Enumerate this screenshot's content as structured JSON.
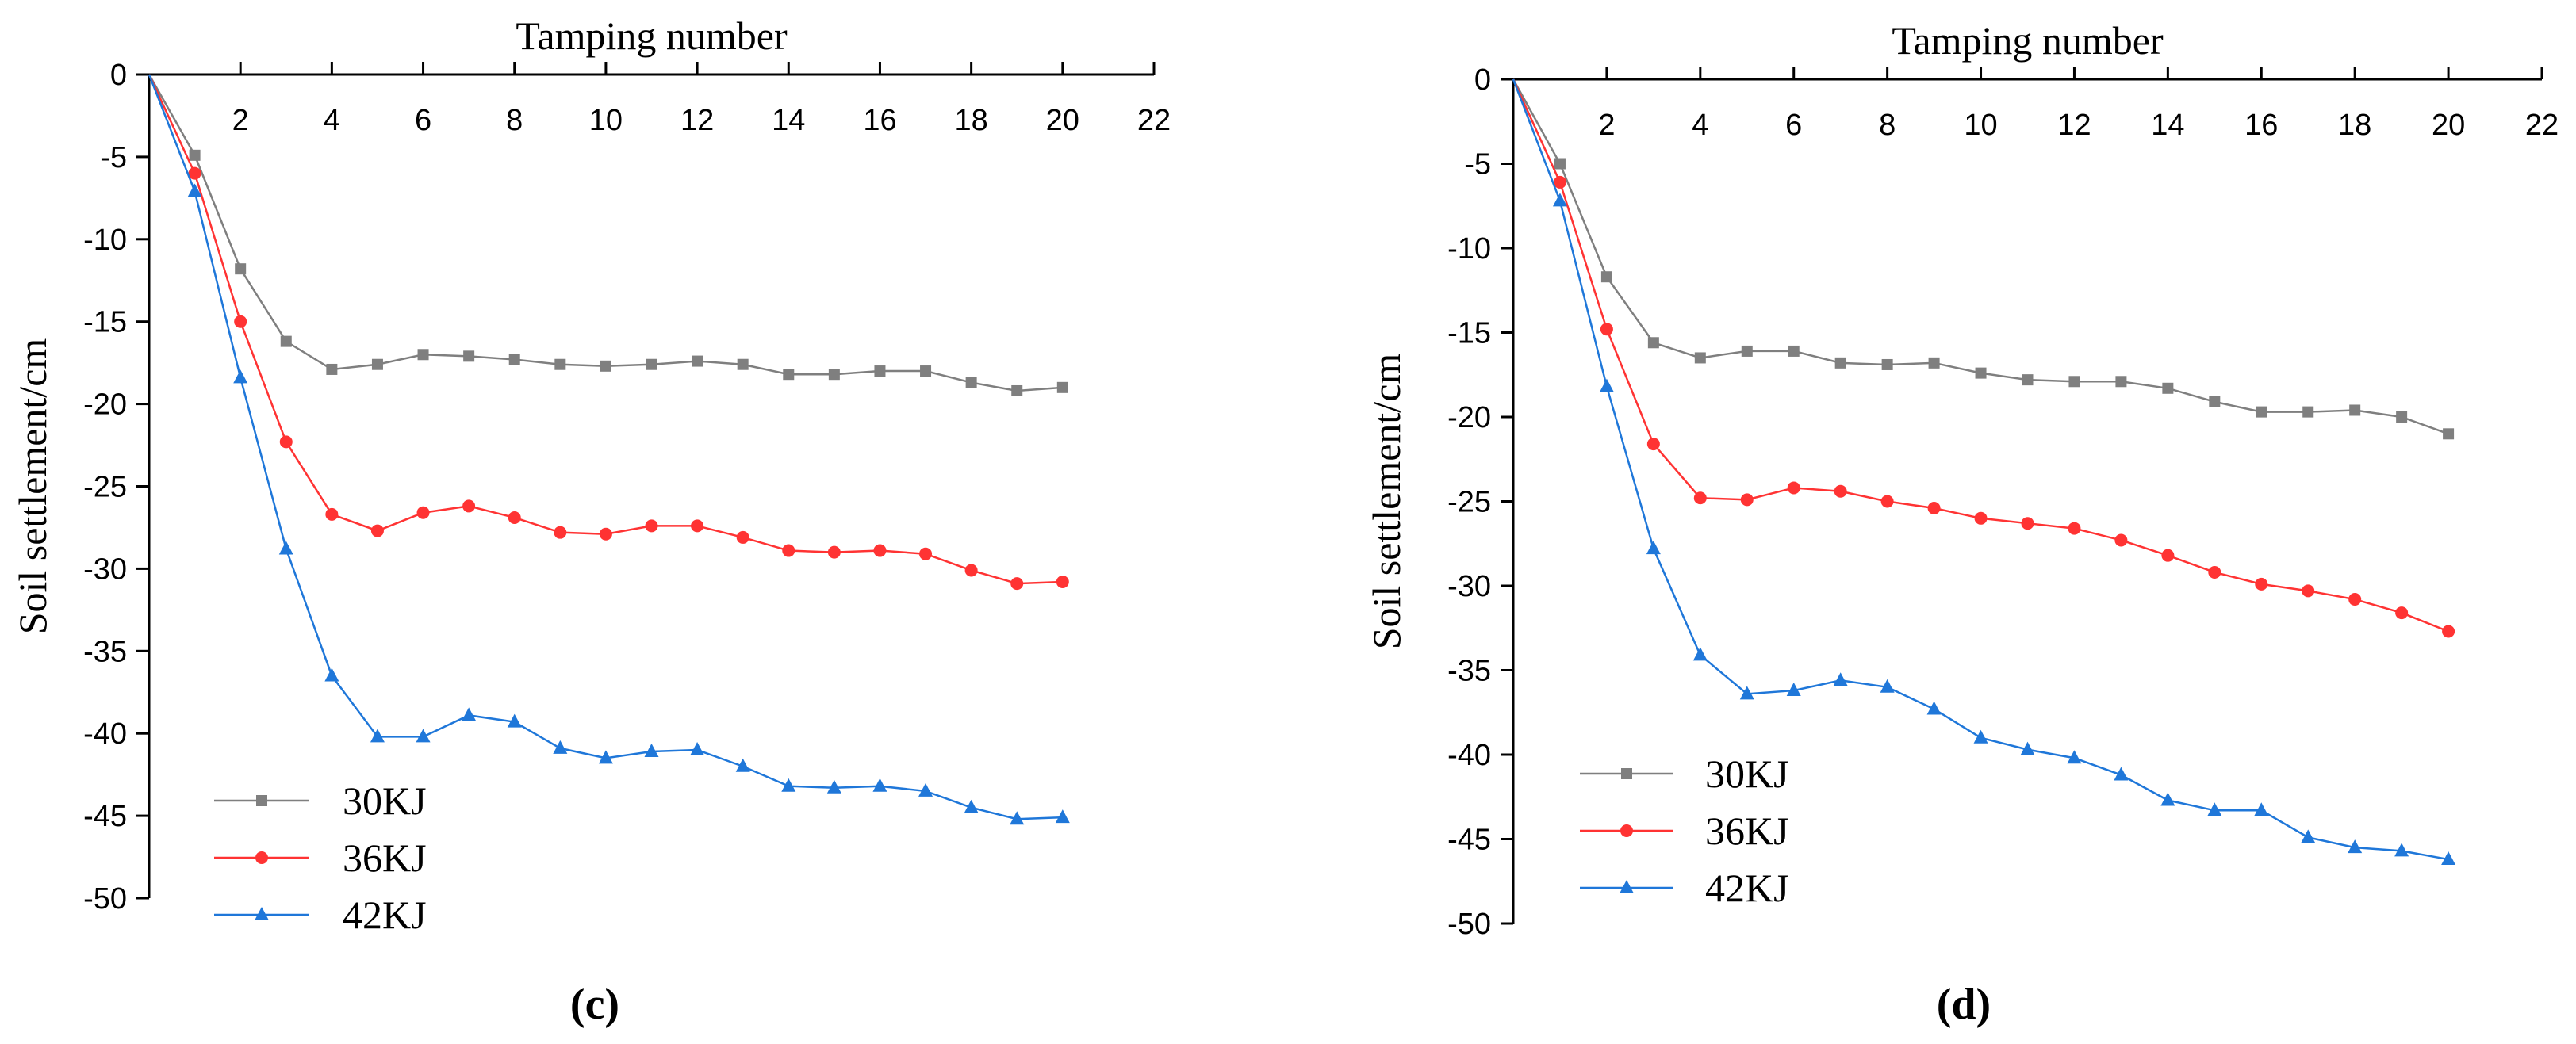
{
  "chart_data": [
    {
      "type": "line",
      "panel_label": "(c)",
      "xlabel": "Tamping number",
      "ylabel": "Soil settlement/cm",
      "xlim": [
        0,
        22
      ],
      "ylim": [
        -50,
        0
      ],
      "x_ticks": [
        2,
        4,
        6,
        8,
        10,
        12,
        14,
        16,
        18,
        20,
        22
      ],
      "y_ticks": [
        0,
        -5,
        -10,
        -15,
        -20,
        -25,
        -30,
        -35,
        -40,
        -45,
        -50
      ],
      "x_axis_position": "top",
      "grid": false,
      "legend_position": "bottom-left",
      "x": [
        0,
        1,
        2,
        3,
        4,
        5,
        6,
        7,
        8,
        9,
        10,
        11,
        12,
        13,
        14,
        15,
        16,
        17,
        18,
        19,
        20
      ],
      "series": [
        {
          "name": "30KJ",
          "color": "#7f7f7f",
          "marker": "square",
          "values": [
            0,
            -4.9,
            -11.8,
            -16.2,
            -17.9,
            -17.6,
            -17.0,
            -17.1,
            -17.3,
            -17.6,
            -17.7,
            -17.6,
            -17.4,
            -17.6,
            -18.2,
            -18.2,
            -18.0,
            -18.0,
            -18.7,
            -19.2,
            -19.0
          ]
        },
        {
          "name": "36KJ",
          "color": "#ff3333",
          "marker": "circle",
          "values": [
            0,
            -6.0,
            -15.0,
            -22.3,
            -26.7,
            -27.7,
            -26.6,
            -26.2,
            -26.9,
            -27.8,
            -27.9,
            -27.4,
            -27.4,
            -28.1,
            -28.9,
            -29.0,
            -28.9,
            -29.1,
            -30.1,
            -30.9,
            -30.8
          ]
        },
        {
          "name": "42KJ",
          "color": "#1f77d9",
          "marker": "triangle",
          "values": [
            0,
            -7.1,
            -18.4,
            -28.8,
            -36.5,
            -40.2,
            -40.2,
            -38.9,
            -39.3,
            -40.9,
            -41.5,
            -41.1,
            -41.0,
            -42.0,
            -43.2,
            -43.3,
            -43.2,
            -43.5,
            -44.5,
            -45.2,
            -45.1
          ]
        }
      ]
    },
    {
      "type": "line",
      "panel_label": "(d)",
      "xlabel": "Tamping number",
      "ylabel": "Soil settlement/cm",
      "xlim": [
        0,
        22
      ],
      "ylim": [
        -50,
        0
      ],
      "x_ticks": [
        2,
        4,
        6,
        8,
        10,
        12,
        14,
        16,
        18,
        20,
        22
      ],
      "y_ticks": [
        0,
        -5,
        -10,
        -15,
        -20,
        -25,
        -30,
        -35,
        -40,
        -45,
        -50
      ],
      "x_axis_position": "top",
      "grid": false,
      "legend_position": "bottom-left",
      "x": [
        0,
        1,
        2,
        3,
        4,
        5,
        6,
        7,
        8,
        9,
        10,
        11,
        12,
        13,
        14,
        15,
        16,
        17,
        18,
        19,
        20
      ],
      "series": [
        {
          "name": "30KJ",
          "color": "#7f7f7f",
          "marker": "square",
          "values": [
            0,
            -5.0,
            -11.7,
            -15.6,
            -16.5,
            -16.1,
            -16.1,
            -16.8,
            -16.9,
            -16.8,
            -17.4,
            -17.8,
            -17.9,
            -17.9,
            -18.3,
            -19.1,
            -19.7,
            -19.7,
            -19.6,
            -20.0,
            -21.0
          ]
        },
        {
          "name": "36KJ",
          "color": "#ff3333",
          "marker": "circle",
          "values": [
            0,
            -6.1,
            -14.8,
            -21.6,
            -24.8,
            -24.9,
            -24.2,
            -24.4,
            -25.0,
            -25.4,
            -26.0,
            -26.3,
            -26.6,
            -27.3,
            -28.2,
            -29.2,
            -29.9,
            -30.3,
            -30.8,
            -31.6,
            -32.7
          ]
        },
        {
          "name": "42KJ",
          "color": "#1f77d9",
          "marker": "triangle",
          "values": [
            0,
            -7.2,
            -18.2,
            -27.8,
            -34.1,
            -36.4,
            -36.2,
            -35.6,
            -36.0,
            -37.3,
            -39.0,
            -39.7,
            -40.2,
            -41.2,
            -42.7,
            -43.3,
            -43.3,
            -44.9,
            -45.5,
            -45.7,
            -46.2
          ]
        }
      ]
    }
  ]
}
